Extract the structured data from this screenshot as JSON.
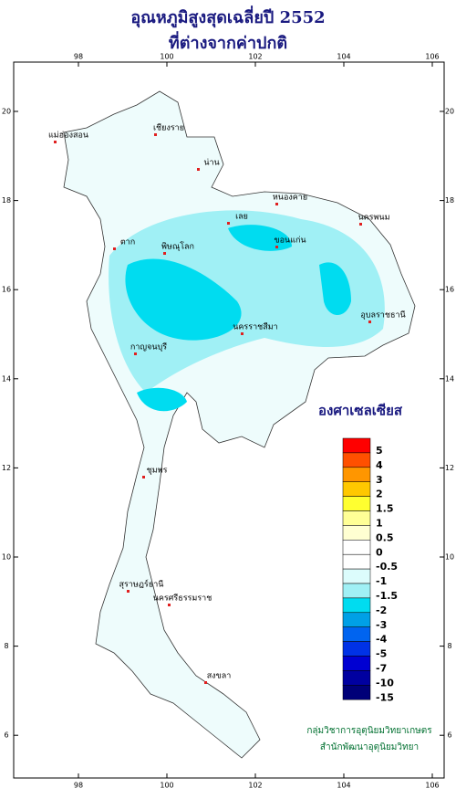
{
  "title": [
    "อุณหภูมิสูงสุดเฉลี่ยปี  2552",
    "ที่ต่างจากค่าปกติ"
  ],
  "lon_ticks": [
    98,
    100,
    102,
    104,
    106
  ],
  "lat_ticks": [
    6,
    8,
    10,
    12,
    14,
    16,
    18,
    20
  ],
  "legend": {
    "title": "องศาเซลเซียส",
    "items": [
      {
        "label": "5",
        "color": "#ff0000"
      },
      {
        "label": "4",
        "color": "#ff5000"
      },
      {
        "label": "3",
        "color": "#ff9600"
      },
      {
        "label": "2",
        "color": "#ffc800"
      },
      {
        "label": "1.5",
        "color": "#ffff30"
      },
      {
        "label": "1",
        "color": "#ffff96"
      },
      {
        "label": "0.5",
        "color": "#ffffd2"
      },
      {
        "label": "0",
        "color": "#ffffff"
      },
      {
        "label": "-0.5",
        "color": "#ffffff"
      },
      {
        "label": "-1",
        "color": "#dcfcfc"
      },
      {
        "label": "-1.5",
        "color": "#a0f0f5"
      },
      {
        "label": "-2",
        "color": "#00dcf0"
      },
      {
        "label": "-3",
        "color": "#00a0e6"
      },
      {
        "label": "-4",
        "color": "#0064f0"
      },
      {
        "label": "-5",
        "color": "#0032e6"
      },
      {
        "label": "-7",
        "color": "#0000d2"
      },
      {
        "label": "-10",
        "color": "#0000a0"
      },
      {
        "label": "-15",
        "color": "#000078"
      }
    ]
  },
  "places": [
    "เชียงราย",
    "น่าน",
    "แม่ฮ่องสอน",
    "เลย",
    "หนองคาย",
    "นครพนม",
    "ตาก",
    "พิษณุโลก",
    "ขอนแก่น",
    "นครราชสีมา",
    "อุบลราชธานี",
    "กาญจนบุรี",
    "ชุมพร",
    "สุราษฎร์ธานี",
    "นครศรีธรรมราช",
    "สงขลา"
  ],
  "credit": [
    "กลุ่มวิชาการอุตุนิยมวิทยาเกษตร",
    "สำนักพัฒนาอุตุนิยมวิทยา"
  ]
}
